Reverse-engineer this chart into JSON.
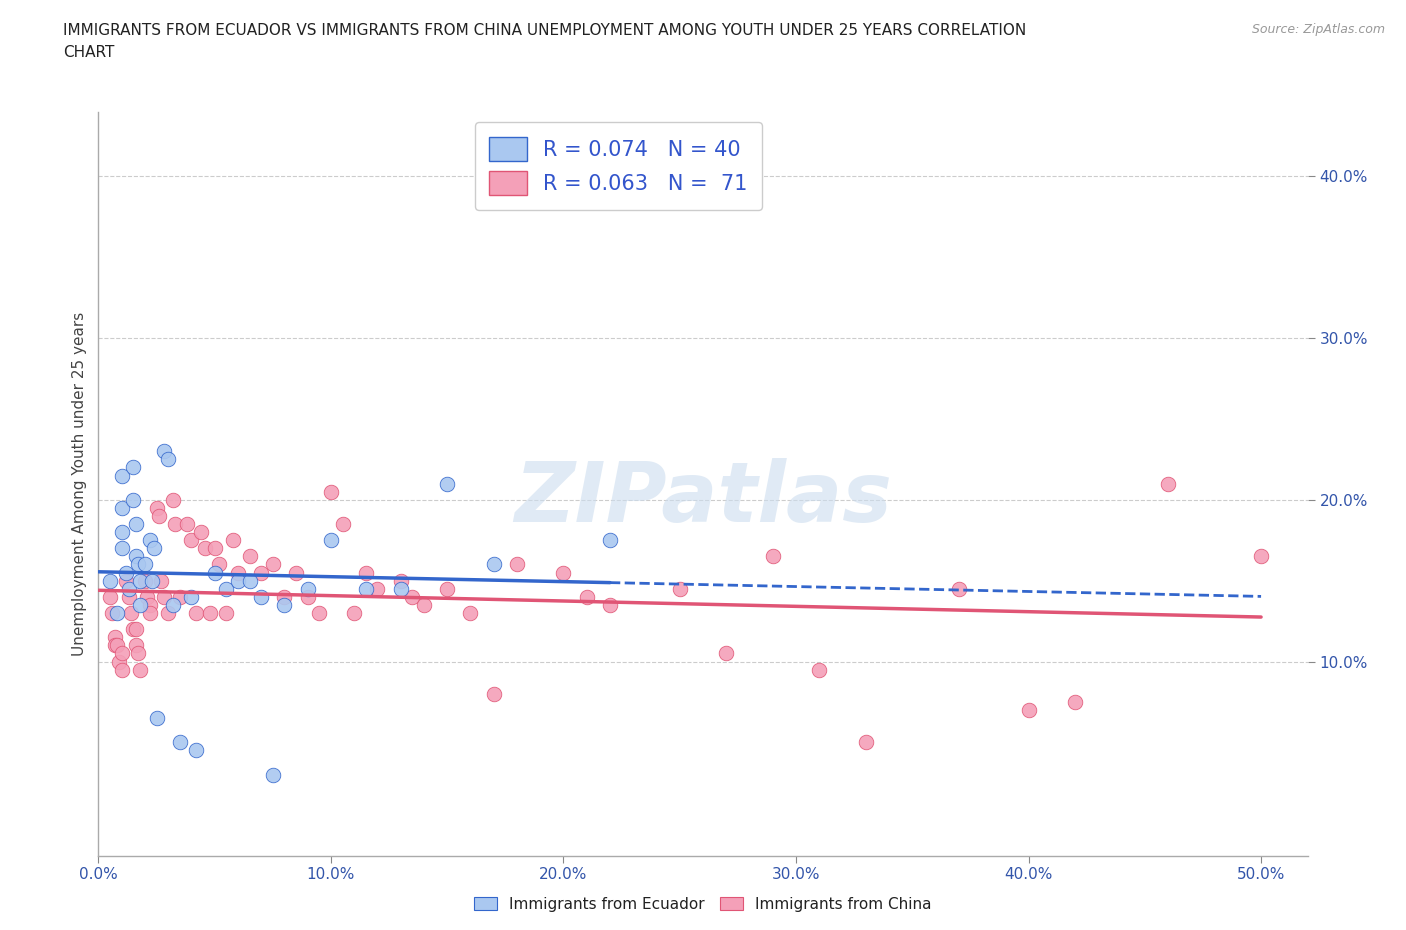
{
  "title_line1": "IMMIGRANTS FROM ECUADOR VS IMMIGRANTS FROM CHINA UNEMPLOYMENT AMONG YOUTH UNDER 25 YEARS CORRELATION",
  "title_line2": "CHART",
  "source": "Source: ZipAtlas.com",
  "ylabel": "Unemployment Among Youth under 25 years",
  "xlim": [
    0.0,
    0.52
  ],
  "ylim": [
    -0.02,
    0.44
  ],
  "xticks": [
    0.0,
    0.1,
    0.2,
    0.3,
    0.4,
    0.5
  ],
  "yticks": [
    0.1,
    0.2,
    0.3,
    0.4
  ],
  "ytick_labels": [
    "10.0%",
    "20.0%",
    "30.0%",
    "40.0%"
  ],
  "xtick_labels": [
    "0.0%",
    "10.0%",
    "20.0%",
    "30.0%",
    "40.0%",
    "50.0%"
  ],
  "R_ecuador": 0.074,
  "N_ecuador": 40,
  "R_china": 0.063,
  "N_china": 71,
  "color_ecuador": "#aac8f0",
  "color_china": "#f4a0b8",
  "line_ecuador": "#3366cc",
  "line_china": "#e05575",
  "watermark": "ZIPatlas",
  "ecuador_x": [
    0.005,
    0.008,
    0.01,
    0.01,
    0.01,
    0.01,
    0.012,
    0.013,
    0.015,
    0.015,
    0.016,
    0.016,
    0.017,
    0.018,
    0.018,
    0.02,
    0.022,
    0.023,
    0.024,
    0.025,
    0.028,
    0.03,
    0.032,
    0.035,
    0.04,
    0.042,
    0.05,
    0.055,
    0.06,
    0.065,
    0.07,
    0.075,
    0.08,
    0.09,
    0.1,
    0.115,
    0.13,
    0.15,
    0.17,
    0.22
  ],
  "ecuador_y": [
    0.15,
    0.13,
    0.17,
    0.18,
    0.195,
    0.215,
    0.155,
    0.145,
    0.22,
    0.2,
    0.185,
    0.165,
    0.16,
    0.15,
    0.135,
    0.16,
    0.175,
    0.15,
    0.17,
    0.065,
    0.23,
    0.225,
    0.135,
    0.05,
    0.14,
    0.045,
    0.155,
    0.145,
    0.15,
    0.15,
    0.14,
    0.03,
    0.135,
    0.145,
    0.175,
    0.145,
    0.145,
    0.21,
    0.16,
    0.175
  ],
  "china_x": [
    0.005,
    0.006,
    0.007,
    0.007,
    0.008,
    0.009,
    0.01,
    0.01,
    0.012,
    0.013,
    0.014,
    0.015,
    0.016,
    0.016,
    0.017,
    0.018,
    0.02,
    0.021,
    0.022,
    0.022,
    0.025,
    0.026,
    0.027,
    0.028,
    0.03,
    0.032,
    0.033,
    0.035,
    0.038,
    0.04,
    0.042,
    0.044,
    0.046,
    0.048,
    0.05,
    0.052,
    0.055,
    0.058,
    0.06,
    0.065,
    0.07,
    0.075,
    0.08,
    0.085,
    0.09,
    0.095,
    0.1,
    0.105,
    0.11,
    0.115,
    0.12,
    0.13,
    0.135,
    0.14,
    0.15,
    0.16,
    0.17,
    0.18,
    0.2,
    0.21,
    0.22,
    0.25,
    0.27,
    0.29,
    0.31,
    0.33,
    0.37,
    0.4,
    0.42,
    0.46,
    0.5
  ],
  "china_y": [
    0.14,
    0.13,
    0.115,
    0.11,
    0.11,
    0.1,
    0.105,
    0.095,
    0.15,
    0.14,
    0.13,
    0.12,
    0.12,
    0.11,
    0.105,
    0.095,
    0.15,
    0.14,
    0.135,
    0.13,
    0.195,
    0.19,
    0.15,
    0.14,
    0.13,
    0.2,
    0.185,
    0.14,
    0.185,
    0.175,
    0.13,
    0.18,
    0.17,
    0.13,
    0.17,
    0.16,
    0.13,
    0.175,
    0.155,
    0.165,
    0.155,
    0.16,
    0.14,
    0.155,
    0.14,
    0.13,
    0.205,
    0.185,
    0.13,
    0.155,
    0.145,
    0.15,
    0.14,
    0.135,
    0.145,
    0.13,
    0.08,
    0.16,
    0.155,
    0.14,
    0.135,
    0.145,
    0.105,
    0.165,
    0.095,
    0.05,
    0.145,
    0.07,
    0.075,
    0.21,
    0.165
  ],
  "legend_labels": [
    "Immigrants from Ecuador",
    "Immigrants from China"
  ],
  "background_color": "#ffffff",
  "grid_color": "#cccccc"
}
